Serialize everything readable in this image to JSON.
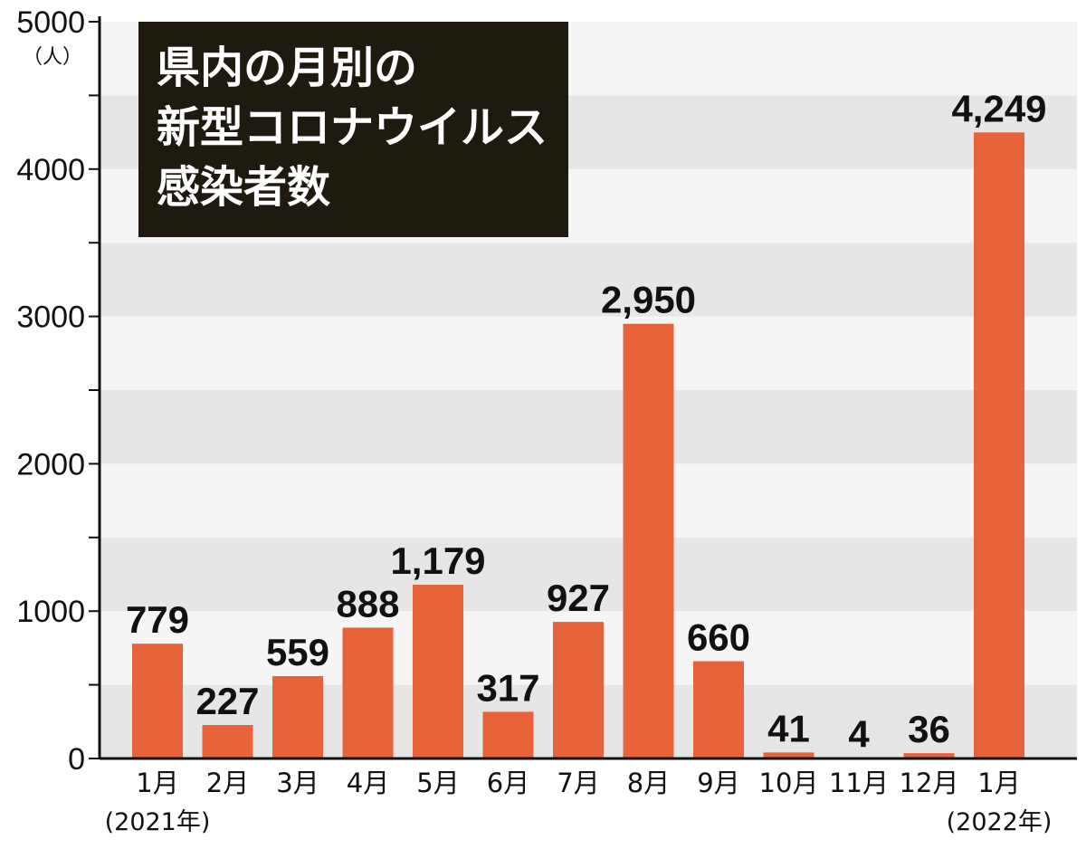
{
  "chart_data": {
    "type": "bar",
    "title_lines": [
      "県内の月別の",
      "新型コロナウイルス",
      "感染者数"
    ],
    "unit": "（人）",
    "categories": [
      "1月",
      "2月",
      "3月",
      "4月",
      "5月",
      "6月",
      "7月",
      "8月",
      "9月",
      "10月",
      "11月",
      "12月",
      "1月"
    ],
    "category_sublabels": [
      "(2021年)",
      "",
      "",
      "",
      "",
      "",
      "",
      "",
      "",
      "",
      "",
      "",
      "(2022年)"
    ],
    "values": [
      779,
      227,
      559,
      888,
      1179,
      317,
      927,
      2950,
      660,
      41,
      4,
      36,
      4249
    ],
    "value_labels": [
      "779",
      "227",
      "559",
      "888",
      "1,179",
      "317",
      "927",
      "2,950",
      "660",
      "41",
      "4",
      "36",
      "4,249"
    ],
    "ylim": [
      0,
      5000
    ],
    "yticks": [
      0,
      1000,
      2000,
      3000,
      4000,
      5000
    ],
    "ytick_labels": [
      "0",
      "1000",
      "2000",
      "3000",
      "4000",
      "5000"
    ],
    "minor_tick_step": 500,
    "grid": "alternating horizontal bands",
    "colors": {
      "bar": "#e8633a",
      "band_dark": "#e6e6e6",
      "band_light": "#f5f5f5",
      "title_bg": "#1e1a0f",
      "title_text": "#ffffff"
    }
  }
}
